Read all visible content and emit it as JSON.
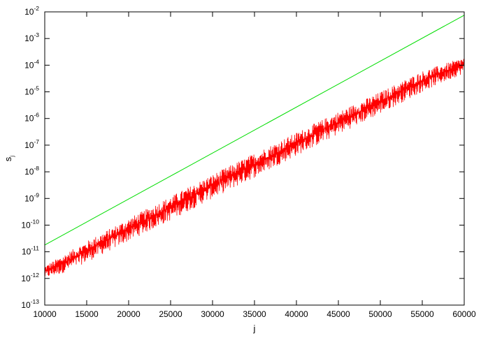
{
  "chart_data": {
    "type": "line",
    "title": "",
    "xlabel": "j",
    "ylabel": "s",
    "ylabel_subscript": "j",
    "x_scale": "linear",
    "y_scale": "log",
    "xlim": [
      10000,
      60000
    ],
    "ylim": [
      1e-13,
      0.01
    ],
    "x_ticks": [
      10000,
      15000,
      20000,
      25000,
      30000,
      35000,
      40000,
      45000,
      50000,
      55000,
      60000
    ],
    "x_tick_labels": [
      "10000",
      "15000",
      "20000",
      "25000",
      "30000",
      "35000",
      "40000",
      "45000",
      "50000",
      "55000",
      "60000"
    ],
    "y_tick_base": "10",
    "y_tick_exponents": [
      "-13",
      "-12",
      "-11",
      "-10",
      "-9",
      "-8",
      "-7",
      "-6",
      "-5",
      "-4",
      "-3",
      "-2"
    ],
    "grid": false,
    "legend": "none",
    "series": [
      {
        "color": "#00dd00",
        "x": [
          10000,
          60000
        ],
        "y": [
          1.8e-11,
          0.0075
        ]
      },
      {
        "color": "#ff0000",
        "style": "noisy",
        "x": [
          10000,
          12000,
          15000,
          20000,
          25000,
          30000,
          35000,
          40000,
          45000,
          50000,
          55000,
          60000
        ],
        "y_upper": [
          3e-12,
          7e-12,
          2.5e-11,
          1.8e-10,
          1.2e-09,
          8e-09,
          5e-08,
          3e-07,
          1.8e-06,
          1e-05,
          6e-05,
          0.0002
        ],
        "y_lower": [
          1e-12,
          1.5e-12,
          4e-12,
          2.5e-11,
          1.5e-10,
          1e-09,
          6e-09,
          4e-08,
          2.5e-07,
          1.5e-06,
          1e-05,
          5e-05
        ]
      }
    ]
  }
}
